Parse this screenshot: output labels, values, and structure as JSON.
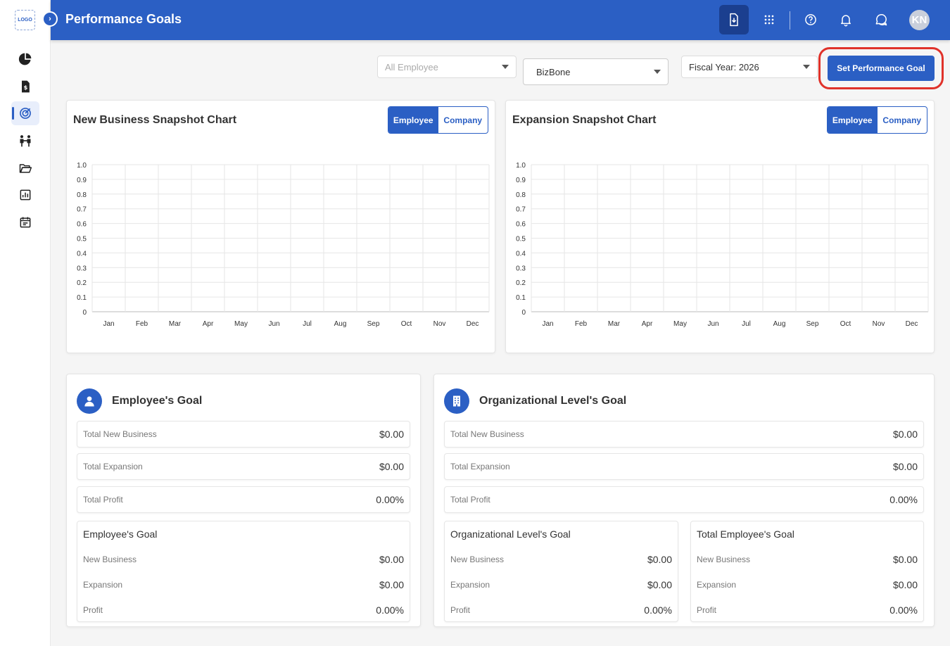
{
  "app": {
    "logo_text": "LOGO",
    "title": "Performance Goals",
    "avatar_initials": "KN",
    "accent_color": "#2b5fc4"
  },
  "sidebar": {
    "items": [
      {
        "icon": "pie-chart-icon"
      },
      {
        "icon": "invoice-dollar-icon"
      },
      {
        "icon": "target-icon",
        "active": true
      },
      {
        "icon": "people-handshake-icon"
      },
      {
        "icon": "folder-open-icon"
      },
      {
        "icon": "bar-chart-icon"
      },
      {
        "icon": "calendar-icon"
      }
    ]
  },
  "topbar": {
    "icons": [
      "download-icon",
      "apps-grid-icon",
      "help-icon",
      "bell-icon",
      "chat-icon"
    ]
  },
  "filters": {
    "employee_placeholder": "All Employee",
    "company_value": "BizBone",
    "fiscal_year_value": "Fiscal Year: 2026",
    "set_goal_label": "Set Performance Goal"
  },
  "charts": {
    "new_business_title": "New Business Snapshot Chart",
    "expansion_title": "Expansion Snapshot Chart",
    "toggle_employee": "Employee",
    "toggle_company": "Company"
  },
  "chart_data": [
    {
      "type": "line",
      "title": "New Business Snapshot Chart",
      "categories": [
        "Jan",
        "Feb",
        "Mar",
        "Apr",
        "May",
        "Jun",
        "Jul",
        "Aug",
        "Sep",
        "Oct",
        "Nov",
        "Dec"
      ],
      "series": [],
      "ylim": [
        0,
        1.0
      ],
      "yticks": [
        "0",
        "0.1",
        "0.2",
        "0.3",
        "0.4",
        "0.5",
        "0.6",
        "0.7",
        "0.8",
        "0.9",
        "1.0"
      ],
      "grid": true
    },
    {
      "type": "line",
      "title": "Expansion Snapshot Chart",
      "categories": [
        "Jan",
        "Feb",
        "Mar",
        "Apr",
        "May",
        "Jun",
        "Jul",
        "Aug",
        "Sep",
        "Oct",
        "Nov",
        "Dec"
      ],
      "series": [],
      "ylim": [
        0,
        1.0
      ],
      "yticks": [
        "0",
        "0.1",
        "0.2",
        "0.3",
        "0.4",
        "0.5",
        "0.6",
        "0.7",
        "0.8",
        "0.9",
        "1.0"
      ],
      "grid": true
    }
  ],
  "employee_goal": {
    "title": "Employee's Goal",
    "total_new_business_label": "Total New Business",
    "total_new_business_value": "$0.00",
    "total_expansion_label": "Total Expansion",
    "total_expansion_value": "$0.00",
    "total_profit_label": "Total Profit",
    "total_profit_value": "0.00%",
    "sub": {
      "title": "Employee's Goal",
      "new_business_label": "New Business",
      "new_business_value": "$0.00",
      "expansion_label": "Expansion",
      "expansion_value": "$0.00",
      "profit_label": "Profit",
      "profit_value": "0.00%"
    }
  },
  "org_goal": {
    "title": "Organizational Level's Goal",
    "total_new_business_label": "Total New Business",
    "total_new_business_value": "$0.00",
    "total_expansion_label": "Total Expansion",
    "total_expansion_value": "$0.00",
    "total_profit_label": "Total Profit",
    "total_profit_value": "0.00%",
    "org_sub": {
      "title": "Organizational Level's Goal",
      "new_business_label": "New Business",
      "new_business_value": "$0.00",
      "expansion_label": "Expansion",
      "expansion_value": "$0.00",
      "profit_label": "Profit",
      "profit_value": "0.00%"
    },
    "emp_sub": {
      "title": "Total Employee's Goal",
      "new_business_label": "New Business",
      "new_business_value": "$0.00",
      "expansion_label": "Expansion",
      "expansion_value": "$0.00",
      "profit_label": "Profit",
      "profit_value": "0.00%"
    }
  }
}
